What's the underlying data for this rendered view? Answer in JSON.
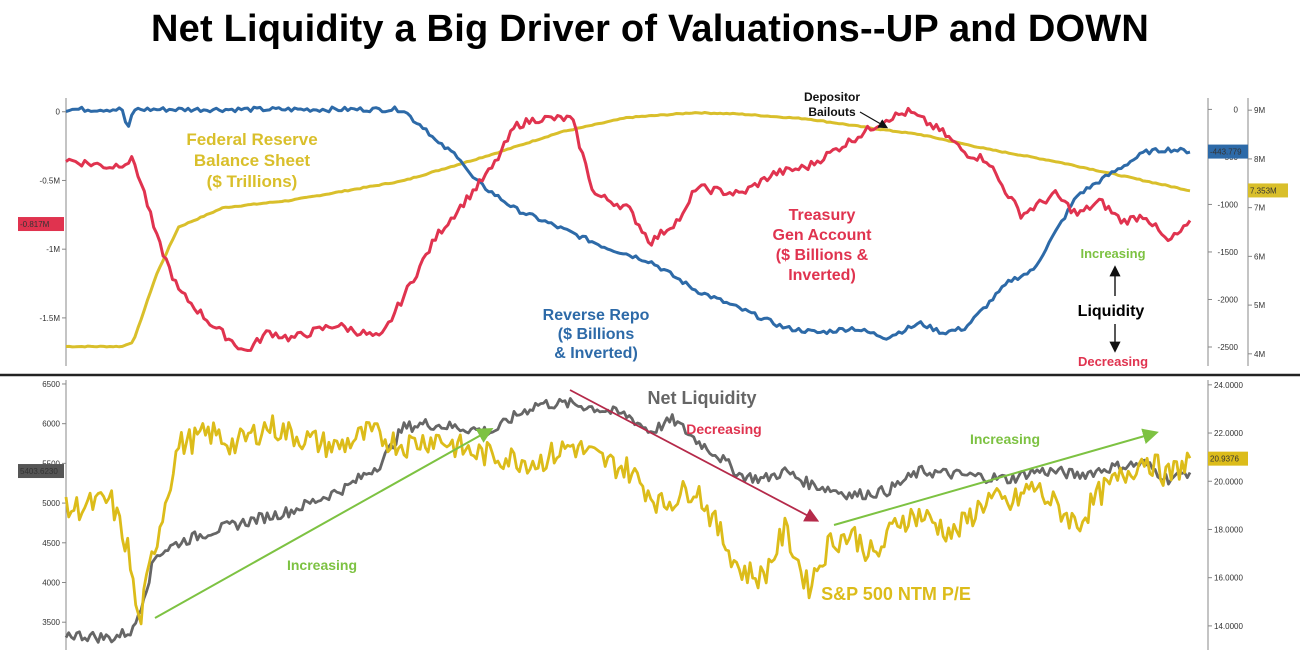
{
  "title": "Net Liquidity a Big Driver of Valuations--UP and DOWN",
  "colors": {
    "fed": "#d9bf2b",
    "rrp": "#2d6aa8",
    "tga": "#e0334f",
    "net": "#666666",
    "pe": "#dcbc1a",
    "green": "#7dc242",
    "arrow_red": "#b52a4a"
  },
  "chart_data": [
    {
      "type": "line",
      "panel": "top",
      "left_axis": {
        "ticks": [
          "0",
          "-0.5M",
          "-1M",
          "-1.5M"
        ],
        "values": [
          0,
          -0.5,
          -1,
          -1.5
        ],
        "ylim": [
          -1.85,
          0.1
        ],
        "current_label": "-0.817M",
        "current": -0.817
      },
      "right_axis_1": {
        "ticks": [
          "0",
          "-500",
          "-1000",
          "-1500",
          "-2000",
          "-2500"
        ],
        "values": [
          0,
          -500,
          -1000,
          -1500,
          -2000,
          -2500
        ],
        "ylim": [
          -2700,
          120
        ],
        "current_label": "-443.779",
        "current": -443.779
      },
      "right_axis_2": {
        "ticks": [
          "9M",
          "8M",
          "7M",
          "6M",
          "5M",
          "4M"
        ],
        "values": [
          9,
          8,
          7,
          6,
          5,
          4
        ],
        "ylim": [
          3.75,
          9.25
        ],
        "current_label": "7.353M",
        "current": 7.353
      },
      "series": [
        {
          "name": "Federal Reserve Balance Sheet ($ Trillions)",
          "axis": "right_axis_2",
          "color_key": "fed",
          "x": [
            0,
            0.05,
            0.06,
            0.08,
            0.1,
            0.14,
            0.2,
            0.3,
            0.38,
            0.44,
            0.5,
            0.56,
            0.6,
            0.66,
            0.72,
            0.76,
            0.82,
            0.88,
            0.94,
            1
          ],
          "values": [
            4.15,
            4.15,
            4.25,
            5.6,
            6.6,
            7.0,
            7.15,
            7.55,
            8.1,
            8.55,
            8.85,
            8.95,
            8.92,
            8.82,
            8.62,
            8.5,
            8.2,
            7.95,
            7.65,
            7.35
          ]
        },
        {
          "name": "Reverse Repo ($ Billions & Inverted)",
          "axis": "right_axis_1",
          "color_key": "rrp",
          "x": [
            0,
            0.05,
            0.055,
            0.06,
            0.065,
            0.3,
            0.31,
            0.32,
            0.33,
            0.35,
            0.36,
            0.37,
            0.4,
            0.44,
            0.48,
            0.52,
            0.56,
            0.6,
            0.64,
            0.67,
            0.7,
            0.73,
            0.76,
            0.78,
            0.8,
            0.82,
            0.84,
            0.86,
            0.88,
            0.9,
            0.92,
            0.94,
            0.96,
            0.98,
            1
          ],
          "values": [
            0,
            0,
            -230,
            0,
            0,
            0,
            -120,
            -200,
            -350,
            -500,
            -700,
            -800,
            -1050,
            -1250,
            -1450,
            -1600,
            -1900,
            -2100,
            -2300,
            -2350,
            -2300,
            -2400,
            -2250,
            -2350,
            -2300,
            -2050,
            -1800,
            -1700,
            -1300,
            -900,
            -750,
            -600,
            -450,
            -420,
            -440
          ]
        },
        {
          "name": "Treasury Gen Account ($ Billions & Inverted)",
          "axis": "left_axis",
          "color_key": "tga",
          "x": [
            0,
            0.04,
            0.06,
            0.07,
            0.08,
            0.1,
            0.13,
            0.16,
            0.18,
            0.2,
            0.24,
            0.26,
            0.28,
            0.3,
            0.33,
            0.36,
            0.38,
            0.4,
            0.42,
            0.45,
            0.47,
            0.5,
            0.52,
            0.55,
            0.56,
            0.6,
            0.63,
            0.66,
            0.7,
            0.73,
            0.75,
            0.78,
            0.8,
            0.82,
            0.83,
            0.85,
            0.88,
            0.9,
            0.92,
            0.94,
            0.96,
            0.98,
            1
          ],
          "values": [
            -0.35,
            -0.4,
            -0.35,
            -0.6,
            -0.9,
            -1.3,
            -1.55,
            -1.75,
            -1.6,
            -1.65,
            -1.55,
            -1.6,
            -1.65,
            -1.35,
            -0.9,
            -0.6,
            -0.4,
            -0.1,
            -0.05,
            -0.05,
            -0.6,
            -0.7,
            -0.95,
            -0.75,
            -0.55,
            -0.6,
            -0.45,
            -0.4,
            -0.2,
            -0.05,
            0,
            -0.15,
            -0.3,
            -0.35,
            -0.5,
            -0.75,
            -0.6,
            -0.75,
            -0.65,
            -0.8,
            -0.75,
            -0.95,
            -0.82
          ]
        }
      ]
    },
    {
      "type": "line",
      "panel": "bottom",
      "left_axis": {
        "ticks": [
          "6500",
          "6000",
          "5500",
          "5000",
          "4500",
          "4000",
          "3500"
        ],
        "values": [
          6500,
          6000,
          5500,
          5000,
          4500,
          4000,
          3500
        ],
        "ylim": [
          3150,
          6550
        ],
        "current_label": "5403.6230",
        "current": 5403.623
      },
      "right_axis": {
        "ticks": [
          "24.0000",
          "22.0000",
          "20.0000",
          "18.0000",
          "16.0000",
          "14.0000"
        ],
        "values": [
          24,
          22,
          20,
          18,
          16,
          14
        ],
        "ylim": [
          13.0,
          24.2
        ],
        "current_label": "20.9376",
        "current": 20.9376
      },
      "series": [
        {
          "name": "Net Liquidity",
          "axis": "left_axis",
          "color_key": "net",
          "x": [
            0,
            0.04,
            0.06,
            0.08,
            0.1,
            0.13,
            0.17,
            0.2,
            0.25,
            0.28,
            0.3,
            0.32,
            0.35,
            0.38,
            0.4,
            0.42,
            0.45,
            0.47,
            0.5,
            0.52,
            0.54,
            0.56,
            0.58,
            0.6,
            0.62,
            0.64,
            0.66,
            0.7,
            0.73,
            0.76,
            0.8,
            0.84,
            0.86,
            0.88,
            0.9,
            0.93,
            0.96,
            0.98,
            1
          ],
          "values": [
            3350,
            3300,
            3400,
            4350,
            4500,
            4650,
            4800,
            4900,
            5200,
            5500,
            5950,
            6000,
            5950,
            5900,
            6100,
            6250,
            6250,
            6200,
            6100,
            5900,
            6050,
            5800,
            5600,
            5350,
            5300,
            5400,
            5250,
            5100,
            5150,
            5400,
            5350,
            5300,
            5400,
            5400,
            5350,
            5450,
            5500,
            5300,
            5400
          ]
        },
        {
          "name": "S&P 500 NTM P/E",
          "axis": "right_axis",
          "color_key": "pe",
          "x": [
            0,
            0.04,
            0.055,
            0.065,
            0.075,
            0.1,
            0.13,
            0.15,
            0.18,
            0.21,
            0.24,
            0.27,
            0.3,
            0.33,
            0.36,
            0.39,
            0.42,
            0.45,
            0.48,
            0.5,
            0.53,
            0.56,
            0.58,
            0.6,
            0.62,
            0.64,
            0.66,
            0.68,
            0.7,
            0.72,
            0.74,
            0.76,
            0.79,
            0.82,
            0.84,
            0.86,
            0.88,
            0.9,
            0.92,
            0.94,
            0.96,
            0.98,
            1
          ],
          "values": [
            18.8,
            19.2,
            17.2,
            14.0,
            16.5,
            21.5,
            22.0,
            21.5,
            22.3,
            21.8,
            21.4,
            22.0,
            21.5,
            21.8,
            21.2,
            21.0,
            20.8,
            21.5,
            20.8,
            20.5,
            19.0,
            19.8,
            18.0,
            16.3,
            16.0,
            18.0,
            15.6,
            17.5,
            17.8,
            16.8,
            18.4,
            18.6,
            17.8,
            19.3,
            19.0,
            19.8,
            19.0,
            18.2,
            19.5,
            20.2,
            21.0,
            20.2,
            20.9
          ]
        }
      ]
    }
  ],
  "annotations": {
    "fed": [
      "Federal Reserve",
      "Balance Sheet",
      "($ Trillions)"
    ],
    "rrp": [
      "Reverse Repo",
      "($ Billions",
      "& Inverted)"
    ],
    "tga": [
      "Treasury",
      "Gen Account",
      "($ Billions &",
      "Inverted)"
    ],
    "depositor": [
      "Depositor",
      "Bailouts"
    ],
    "liq_increasing": "Increasing",
    "liquidity": "Liquidity",
    "liq_decreasing": "Decreasing",
    "net_liquidity": "Net Liquidity",
    "net_decreasing": "Decreasing",
    "increasing_left": "Increasing",
    "increasing_right": "Increasing",
    "sp500": "S&P 500 NTM P/E"
  }
}
